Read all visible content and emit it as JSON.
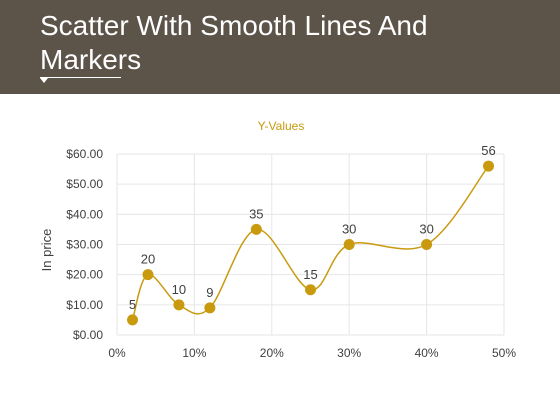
{
  "slide": {
    "title": "Scatter With Smooth Lines And Markers"
  },
  "colors": {
    "header_bg": "#5c5349",
    "series": "#c99a0e",
    "grid": "#e6e6e6",
    "text": "#404040",
    "white": "#ffffff"
  },
  "chart_data": {
    "type": "line",
    "smooth": true,
    "markers": true,
    "title": "Y-Values",
    "xlabel": "",
    "ylabel": "In price",
    "xlim": [
      0,
      0.5
    ],
    "ylim": [
      0,
      60
    ],
    "x_ticks": [
      "0%",
      "10%",
      "20%",
      "30%",
      "40%",
      "50%"
    ],
    "y_ticks": [
      "$0.00",
      "$10.00",
      "$20.00",
      "$30.00",
      "$40.00",
      "$50.00",
      "$60.00"
    ],
    "grid": true,
    "legend": "none",
    "x": [
      0.02,
      0.04,
      0.08,
      0.12,
      0.18,
      0.25,
      0.3,
      0.4,
      0.48
    ],
    "series": [
      {
        "values": [
          5,
          20,
          10,
          9,
          35,
          15,
          30,
          30,
          56
        ],
        "data_labels": [
          "5",
          "20",
          "10",
          "9",
          "35",
          "15",
          "30",
          "30",
          "56"
        ]
      }
    ]
  }
}
